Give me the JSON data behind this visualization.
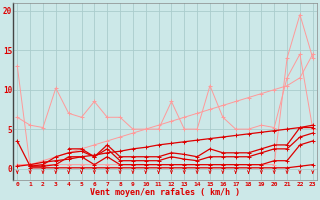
{
  "x": [
    0,
    1,
    2,
    3,
    4,
    5,
    6,
    7,
    8,
    9,
    10,
    11,
    12,
    13,
    14,
    15,
    16,
    17,
    18,
    19,
    20,
    21,
    22,
    23
  ],
  "line_big_triangle": [
    0.5,
    0.5,
    0.5,
    0.5,
    0.5,
    0.5,
    0.5,
    0.5,
    0.5,
    0.5,
    0.5,
    0.5,
    0.5,
    0.5,
    0.5,
    0.5,
    0.5,
    0.5,
    0.5,
    0.5,
    0.5,
    14.0,
    19.5,
    14.0
  ],
  "line_diag": [
    0.5,
    0.5,
    1.0,
    1.5,
    2.0,
    2.5,
    3.0,
    3.5,
    4.0,
    4.5,
    5.0,
    5.5,
    6.0,
    6.5,
    7.0,
    7.5,
    8.0,
    8.5,
    9.0,
    9.5,
    10.0,
    10.5,
    11.5,
    14.5
  ],
  "line_jagged_light": [
    6.5,
    5.5,
    5.2,
    10.2,
    7.0,
    6.5,
    8.5,
    6.5,
    6.5,
    5.0,
    5.0,
    5.0,
    8.5,
    5.0,
    5.0,
    10.5,
    6.5,
    5.0,
    5.0,
    5.5,
    5.2,
    11.5,
    14.5,
    5.0
  ],
  "line_steep_drop": [
    13.0,
    0.3,
    null,
    null,
    null,
    null,
    null,
    null,
    null,
    null,
    null,
    null,
    null,
    null,
    null,
    null,
    null,
    null,
    null,
    null,
    null,
    null,
    null,
    null
  ],
  "line_dark_upper": [
    null,
    null,
    null,
    null,
    2.5,
    2.5,
    1.5,
    3.0,
    1.5,
    1.5,
    1.5,
    1.5,
    2.0,
    1.8,
    1.5,
    2.5,
    2.0,
    2.0,
    2.0,
    2.5,
    3.0,
    3.0,
    5.2,
    5.2
  ],
  "line_dark_med1": [
    3.5,
    0.3,
    0.5,
    1.5,
    2.0,
    2.2,
    1.5,
    2.5,
    1.0,
    1.0,
    1.0,
    1.0,
    1.5,
    1.2,
    1.0,
    1.5,
    1.5,
    1.5,
    1.5,
    2.0,
    2.5,
    2.5,
    4.0,
    4.5
  ],
  "line_dark_low": [
    null,
    0.3,
    0.3,
    0.5,
    1.5,
    1.5,
    0.5,
    1.5,
    0.5,
    0.5,
    0.5,
    0.5,
    0.5,
    0.5,
    0.5,
    0.5,
    0.5,
    0.5,
    0.5,
    0.5,
    1.0,
    1.0,
    3.0,
    3.5
  ],
  "line_dark_bottom": [
    null,
    0.1,
    0.1,
    0.1,
    0.1,
    0.1,
    0.1,
    0.1,
    0.1,
    0.1,
    0.1,
    0.1,
    0.1,
    0.1,
    0.1,
    0.1,
    0.1,
    0.1,
    0.1,
    0.1,
    0.1,
    0.1,
    0.3,
    0.5
  ],
  "line_gradual": [
    0.3,
    0.5,
    0.8,
    1.0,
    1.2,
    1.5,
    1.7,
    2.0,
    2.2,
    2.5,
    2.7,
    3.0,
    3.2,
    3.4,
    3.6,
    3.8,
    4.0,
    4.2,
    4.4,
    4.6,
    4.8,
    5.0,
    5.2,
    5.5
  ],
  "arrows_x": [
    0,
    1,
    2,
    3,
    4,
    5,
    6,
    7,
    8,
    9,
    10,
    11,
    12,
    13,
    14,
    15,
    16,
    17,
    18,
    19,
    20,
    21,
    22,
    23
  ],
  "bg_color": "#cce8e8",
  "grid_color": "#aacccc",
  "line_color_light": "#ff9999",
  "line_color_dark": "#dd0000",
  "xlabel": "Vent moyen/en rafales ( km/h )",
  "yticks": [
    0,
    5,
    10,
    15,
    20
  ],
  "xticks": [
    0,
    1,
    2,
    3,
    4,
    5,
    6,
    7,
    8,
    9,
    10,
    11,
    12,
    13,
    14,
    15,
    16,
    17,
    18,
    19,
    20,
    21,
    22,
    23
  ],
  "ylim": [
    -1.5,
    21
  ],
  "xlim": [
    -0.3,
    23.3
  ]
}
